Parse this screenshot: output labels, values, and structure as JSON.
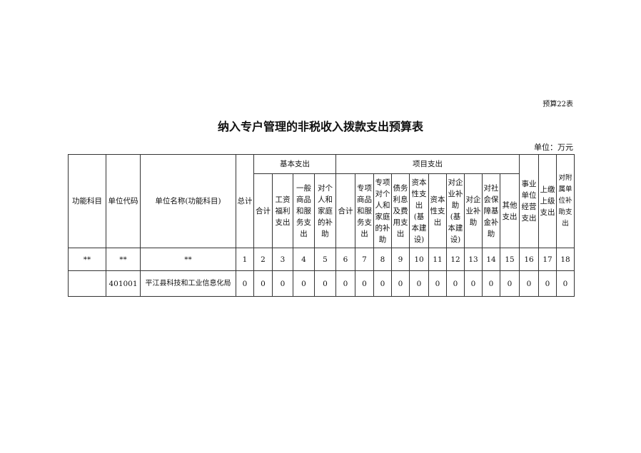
{
  "table_tag": "预算22表",
  "title": "纳入专户管理的非税收入拨款支出预算表",
  "unit": "单位：万元",
  "headers": {
    "func": "功能科目",
    "code": "单位代码",
    "name": "单位名称(功能科目)",
    "total": "总计",
    "basic": "基本支出",
    "project": "项目支出",
    "basic_cols": [
      "合计",
      "工资福利支出",
      "一般商品和服务支出",
      "对个人和家庭的补助"
    ],
    "project_cols": [
      "合计",
      "专项商品和服务支出",
      "专项对个人和家庭的补助",
      "债务利息及费用支出",
      "资本性支出(基本建设)",
      "资本性支出",
      "对企业补助(基本建设)",
      "对企业补助",
      "对社会保障基金补助",
      "其他支出"
    ],
    "tail_cols": [
      "事业单位经营支出",
      "上缴上级支出",
      "对附属单位补助支出"
    ]
  },
  "index_row": [
    "**",
    "**",
    "**",
    "1",
    "2",
    "3",
    "4",
    "5",
    "6",
    "7",
    "8",
    "9",
    "10",
    "11",
    "12",
    "13",
    "14",
    "15",
    "16",
    "17",
    "18"
  ],
  "rows": [
    [
      "",
      "401001",
      "平江县科技和工业信息化局",
      "0",
      "0",
      "0",
      "0",
      "0",
      "0",
      "0",
      "0",
      "0",
      "0",
      "0",
      "0",
      "0",
      "0",
      "0",
      "0",
      "0",
      "0"
    ]
  ]
}
